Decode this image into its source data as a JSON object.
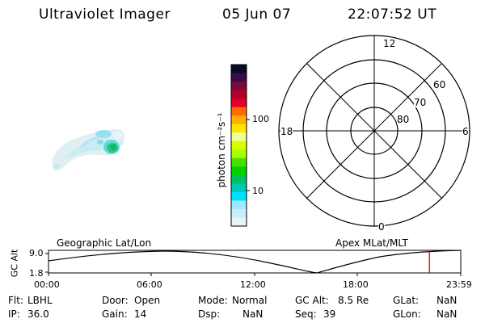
{
  "header": {
    "title": "Ultraviolet Imager",
    "date": "05 Jun 07",
    "time": "22:07:52 UT"
  },
  "colorbar": {
    "unit_label": "photon cm⁻²s⁻¹",
    "ticks": [
      "100",
      "10"
    ],
    "colors": [
      "#0a0a2a",
      "#3a0a4a",
      "#7a0a3a",
      "#b0002a",
      "#e00028",
      "#ff6a00",
      "#ffb000",
      "#ffe400",
      "#f0ff9a",
      "#d6ff00",
      "#a8ff00",
      "#46e000",
      "#00d000",
      "#00c060",
      "#00c8b4",
      "#00e0ff",
      "#9fe8ff",
      "#c9eef5",
      "#e4f4f7"
    ]
  },
  "polar": {
    "mlt_labels": [
      "12",
      "18",
      "6",
      "0"
    ],
    "lat_labels": [
      "60",
      "70",
      "80"
    ]
  },
  "timeline": {
    "left_title": "Geographic Lat/Lon",
    "right_title": "Apex MLat/MLT",
    "axis_label": "GC Alt",
    "y_ticks": [
      "9.0",
      "1.8"
    ],
    "x_ticks": [
      "00:00",
      "06:00",
      "12:00",
      "18:00",
      "23:59"
    ],
    "current_time_fraction": 0.924
  },
  "info": {
    "flt_label": "Flt:",
    "flt_value": "LBHL",
    "ip_label": "IP:",
    "ip_value": "36.0",
    "door_label": "Door:",
    "door_value": "Open",
    "gain_label": "Gain:",
    "gain_value": "14",
    "mode_label": "Mode:",
    "mode_value": "Normal",
    "dsp_label": "Dsp:",
    "dsp_value": "NaN",
    "gcalt_label": "GC Alt:",
    "gcalt_value": "8.5 Re",
    "seq_label": "Seq:",
    "seq_value": "39",
    "glat_label": "GLat:",
    "glat_value": "NaN",
    "glon_label": "GLon:",
    "glon_value": "NaN"
  }
}
